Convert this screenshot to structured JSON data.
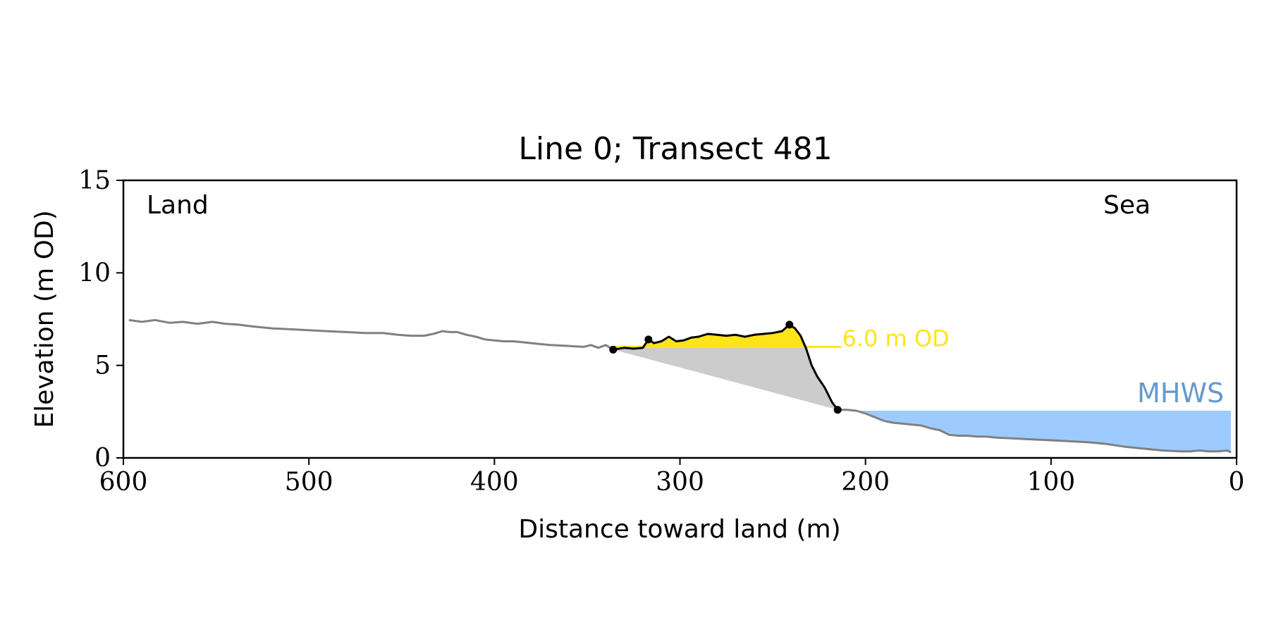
{
  "chart_data": {
    "type": "line",
    "title": "Line 0; Transect 481",
    "xlabel": "Distance toward land (m)",
    "ylabel": "Elevation (m OD)",
    "xlim": [
      600,
      0
    ],
    "ylim": [
      0,
      15
    ],
    "x_ticks": [
      600,
      500,
      400,
      300,
      200,
      100,
      0
    ],
    "y_ticks": [
      0,
      5,
      10,
      15
    ],
    "grid": false,
    "annotations": {
      "land": "Land",
      "sea": "Sea",
      "threshold_label": "6.0 m OD",
      "mhws_label": "MHWS"
    },
    "threshold_elevation": 6.0,
    "threshold_x_range": [
      336,
      213
    ],
    "mhws_elevation": 2.55,
    "mhws_x_range": [
      215,
      3
    ],
    "colors": {
      "profile": "#808080",
      "dune": "#000000",
      "dune_fill": "#ffe419",
      "wedge_fill": "#cccccc",
      "mhws_fill": "#9ecbff",
      "mhws_text": "#6699cc",
      "threshold_text": "#ffe419",
      "axes": "#000000"
    },
    "series": [
      {
        "role": "profile",
        "x": [
          597,
          590,
          583,
          575,
          568,
          560,
          552,
          545,
          538,
          530,
          520,
          510,
          500,
          490,
          480,
          470,
          460,
          452,
          445,
          438,
          433,
          428,
          424,
          420,
          415,
          410,
          405,
          400,
          395,
          390,
          385,
          380,
          375,
          370,
          360,
          352,
          348,
          344,
          340,
          336
        ],
        "y": [
          7.45,
          7.35,
          7.45,
          7.3,
          7.35,
          7.25,
          7.35,
          7.25,
          7.2,
          7.1,
          7.0,
          6.95,
          6.9,
          6.85,
          6.8,
          6.75,
          6.75,
          6.65,
          6.6,
          6.6,
          6.7,
          6.85,
          6.8,
          6.8,
          6.65,
          6.55,
          6.4,
          6.35,
          6.3,
          6.3,
          6.25,
          6.2,
          6.15,
          6.1,
          6.05,
          6.0,
          6.1,
          5.95,
          6.1,
          5.85
        ]
      },
      {
        "role": "dune",
        "x": [
          336,
          330,
          325,
          320,
          317,
          314,
          310,
          306,
          302,
          298,
          294,
          290,
          285,
          280,
          275,
          270,
          265,
          260,
          255,
          250,
          245,
          241,
          238,
          235,
          232,
          229,
          226,
          222,
          218,
          215
        ],
        "y": [
          5.85,
          5.95,
          5.9,
          5.95,
          6.4,
          6.2,
          6.3,
          6.55,
          6.3,
          6.35,
          6.5,
          6.55,
          6.7,
          6.65,
          6.6,
          6.65,
          6.55,
          6.65,
          6.7,
          6.75,
          6.85,
          7.2,
          7.0,
          6.6,
          5.9,
          5.0,
          4.4,
          3.8,
          3.0,
          2.6
        ]
      },
      {
        "role": "foreshore",
        "x": [
          215,
          210,
          205,
          200,
          195,
          190,
          185,
          180,
          175,
          170,
          165,
          160,
          155,
          150,
          145,
          140,
          135,
          130,
          120,
          110,
          100,
          90,
          80,
          70,
          60,
          50,
          40,
          30,
          25,
          20,
          15,
          10,
          5,
          3
        ],
        "y": [
          2.6,
          2.6,
          2.55,
          2.4,
          2.2,
          2.0,
          1.9,
          1.85,
          1.8,
          1.75,
          1.6,
          1.5,
          1.25,
          1.2,
          1.2,
          1.15,
          1.15,
          1.1,
          1.05,
          1.0,
          0.95,
          0.9,
          0.85,
          0.75,
          0.6,
          0.5,
          0.4,
          0.35,
          0.35,
          0.4,
          0.35,
          0.35,
          0.4,
          0.3
        ]
      }
    ],
    "key_points": {
      "x": [
        336,
        317,
        241,
        215
      ],
      "y": [
        5.85,
        6.4,
        7.2,
        2.6
      ]
    }
  }
}
